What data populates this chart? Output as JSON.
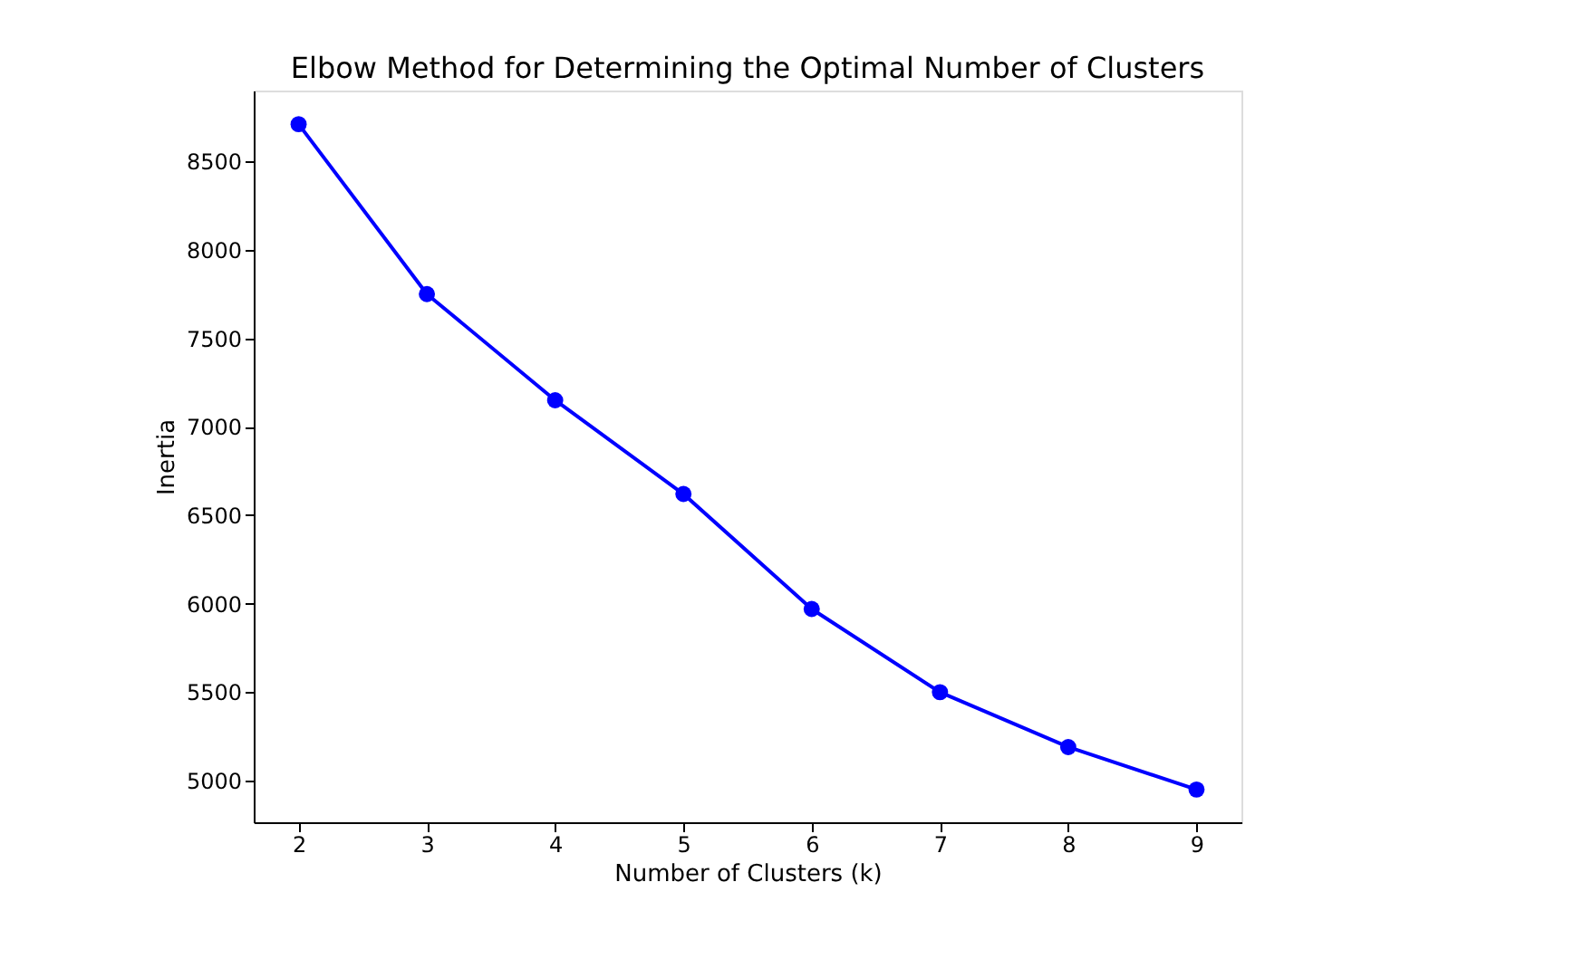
{
  "chart_data": {
    "type": "line",
    "title": "Elbow Method for Determining the Optimal Number of Clusters",
    "xlabel": "Number of Clusters (k)",
    "ylabel": "Inertia",
    "x": [
      2,
      3,
      4,
      5,
      6,
      7,
      8,
      9
    ],
    "series": [
      {
        "color": "#0000ff",
        "values": [
          8710,
          7750,
          7150,
          6620,
          5970,
          5500,
          5190,
          4950
        ]
      }
    ],
    "xlim": [
      1.65,
      9.35
    ],
    "xticks": [
      2,
      3,
      4,
      5,
      6,
      7,
      8,
      9
    ],
    "ylim": [
      4765,
      8900
    ],
    "yticks": [
      5000,
      5500,
      6000,
      6500,
      7000,
      7500,
      8000,
      8500
    ],
    "marker": "circle",
    "line_style": "solid",
    "grid": false
  }
}
